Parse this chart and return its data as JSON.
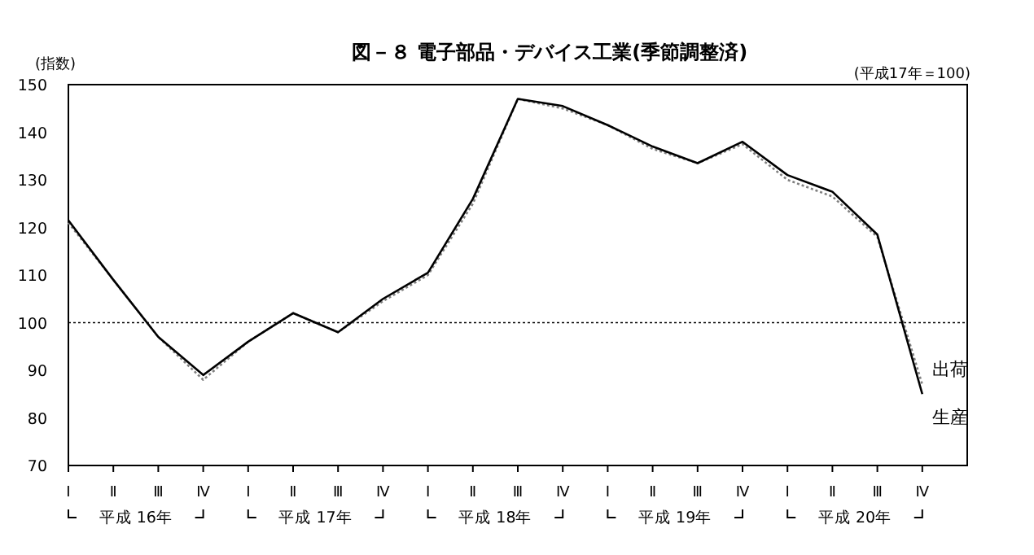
{
  "chart_data": {
    "type": "line",
    "title": "図－８ 電子部品・デバイス工業(季節調整済)",
    "ylabel": "(指数)",
    "subtitle": "(平成17年＝100)",
    "categories": [
      "Ⅰ",
      "Ⅱ",
      "Ⅲ",
      "Ⅳ",
      "Ⅰ",
      "Ⅱ",
      "Ⅲ",
      "Ⅳ",
      "Ⅰ",
      "Ⅱ",
      "Ⅲ",
      "Ⅳ",
      "Ⅰ",
      "Ⅱ",
      "Ⅲ",
      "Ⅳ",
      "Ⅰ",
      "Ⅱ",
      "Ⅲ",
      "Ⅳ"
    ],
    "annotations": [
      "平成 16年",
      "平成 17年",
      "平成 18年",
      "平成 19年",
      "平成 20年"
    ],
    "ylim": [
      70,
      150
    ],
    "yticks": [
      70,
      80,
      90,
      100,
      110,
      120,
      130,
      140,
      150
    ],
    "grid": false,
    "ref_lines": [
      {
        "axis": "y",
        "value": 100,
        "line_style": "dotted",
        "color": "#000000"
      }
    ],
    "series": [
      {
        "name": "出荷",
        "color": "#808080",
        "line_style": "dotted",
        "values": [
          121,
          109,
          97,
          88,
          96,
          102,
          98,
          104.5,
          110,
          125,
          147,
          145,
          141.5,
          136.5,
          133.5,
          137.5,
          130,
          126.5,
          118,
          87
        ]
      },
      {
        "name": "生産",
        "color": "#000000",
        "line_style": "solid",
        "values": [
          121.5,
          109,
          97,
          89,
          96,
          102,
          98,
          105,
          110.5,
          126,
          147,
          145.5,
          141.5,
          137,
          133.5,
          138,
          131,
          127.5,
          118.5,
          85
        ]
      }
    ]
  }
}
